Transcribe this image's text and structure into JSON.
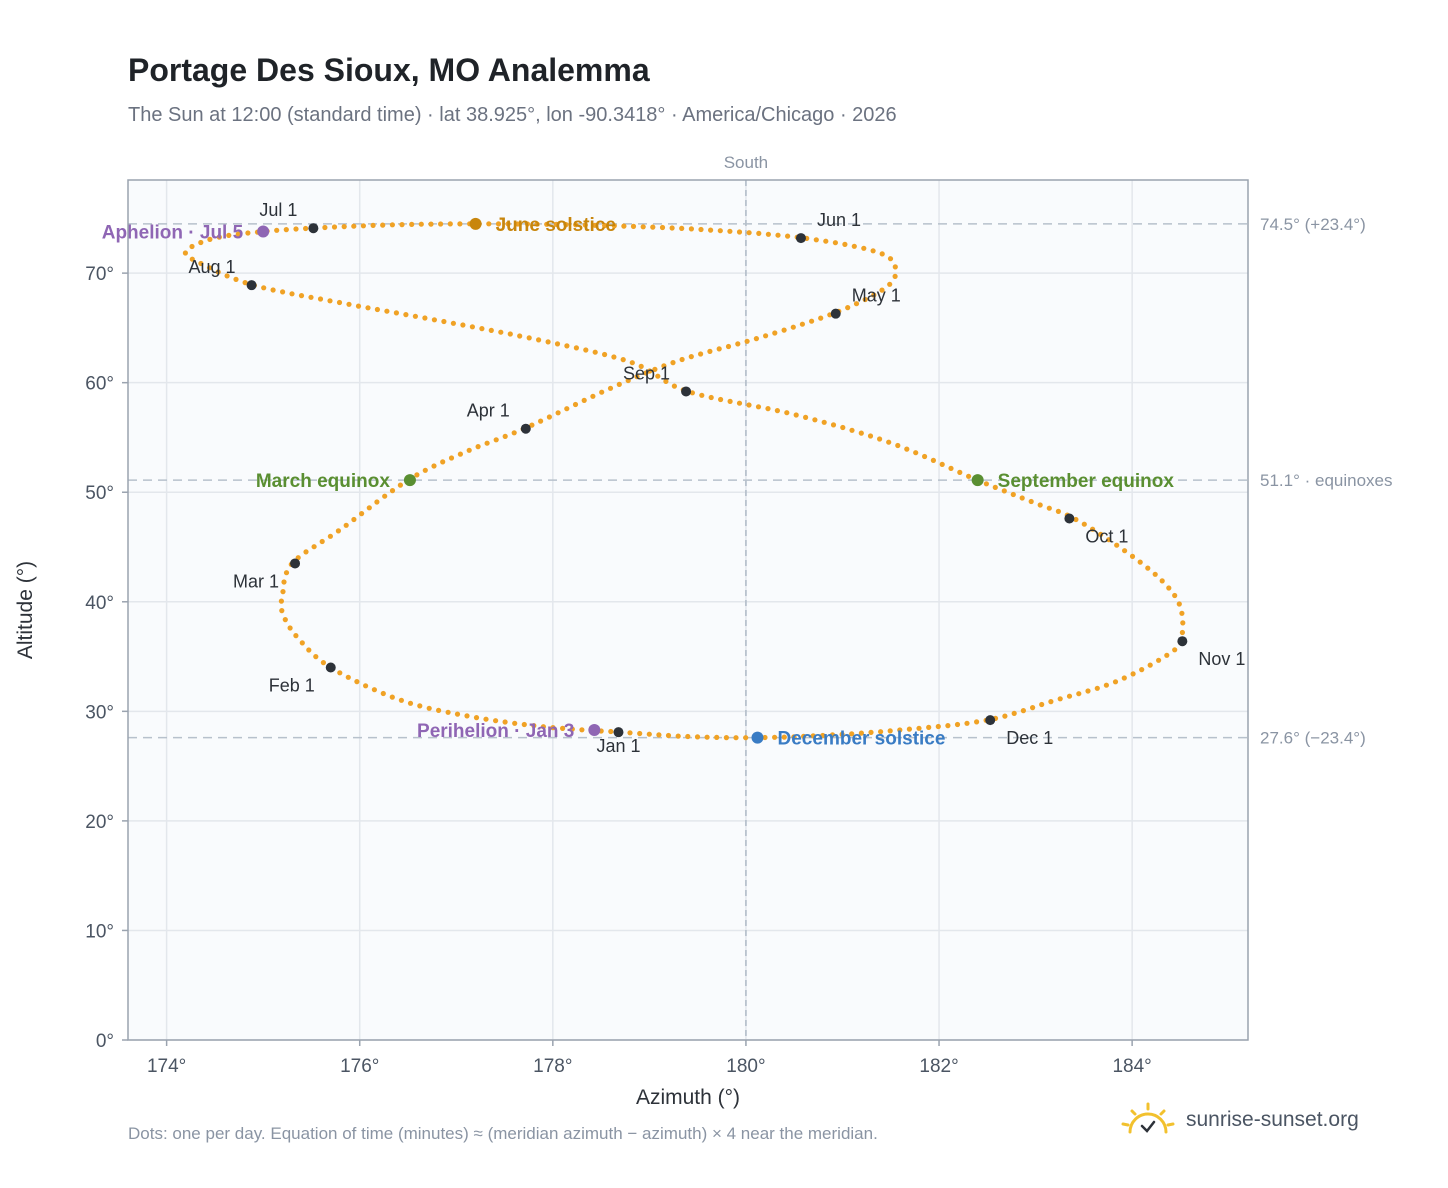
{
  "title": "Portage Des Sioux, MO Analemma",
  "subtitle": "The Sun at 12:00 (standard time) · lat 38.925°, lon -90.3418° · America/Chicago · 2026",
  "footnote": "Dots: one per day. Equation of time (minutes) ≈ (meridian azimuth − azimuth) × 4 near the meridian.",
  "brand": "sunrise-sunset.org",
  "colors": {
    "curve": "#f0a225",
    "month_marker": "#2d3239",
    "equinox": "#5a8f32",
    "june_solstice": "#c8860d",
    "december_solstice": "#3a7cc4",
    "apsis": "#8f66b4",
    "brand_sun": "#f2c12e"
  },
  "chart_data": {
    "type": "scatter",
    "xlabel": "Azimuth (°)",
    "ylabel": "Altitude (°)",
    "xlim": [
      173.6,
      185.2
    ],
    "ylim": [
      0,
      78.5
    ],
    "xticks": [
      174,
      176,
      178,
      180,
      182,
      184
    ],
    "xtick_labels": [
      "174°",
      "176°",
      "178°",
      "180°",
      "182°",
      "184°"
    ],
    "yticks": [
      0,
      10,
      20,
      30,
      40,
      50,
      60,
      70
    ],
    "ytick_labels": [
      "0°",
      "10°",
      "20°",
      "30°",
      "40°",
      "50°",
      "60°",
      "70°"
    ],
    "grid": true,
    "meridian": {
      "azimuth": 180,
      "label": "South"
    },
    "reference_lines": [
      {
        "altitude": 74.5,
        "label": "74.5° (+23.4°)"
      },
      {
        "altitude": 51.1,
        "label": "51.1° · equinoxes"
      },
      {
        "altitude": 27.6,
        "label": "27.6° (−23.4°)"
      }
    ],
    "path_keypoints": [
      [
        178.7,
        28.1
      ],
      [
        177.9,
        28.6
      ],
      [
        177.1,
        29.6
      ],
      [
        176.4,
        31.1
      ],
      [
        175.7,
        34.0
      ],
      [
        175.35,
        36.8
      ],
      [
        175.2,
        39.0
      ],
      [
        175.2,
        40.6
      ],
      [
        175.3,
        43.5
      ],
      [
        175.8,
        46.6
      ],
      [
        176.5,
        51.1
      ],
      [
        177.1,
        53.7
      ],
      [
        177.7,
        55.8
      ],
      [
        178.6,
        59.5
      ],
      [
        179.3,
        62.0
      ],
      [
        180.1,
        64.0
      ],
      [
        180.9,
        66.3
      ],
      [
        181.4,
        68.4
      ],
      [
        181.55,
        70.0
      ],
      [
        181.4,
        71.8
      ],
      [
        180.6,
        73.2
      ],
      [
        179.5,
        74.0
      ],
      [
        178.3,
        74.4
      ],
      [
        177.2,
        74.5
      ],
      [
        176.3,
        74.4
      ],
      [
        175.5,
        74.1
      ],
      [
        175.0,
        73.8
      ],
      [
        174.5,
        73.2
      ],
      [
        174.2,
        72.0
      ],
      [
        174.35,
        70.9
      ],
      [
        174.9,
        68.9
      ],
      [
        175.8,
        67.3
      ],
      [
        176.8,
        65.7
      ],
      [
        177.8,
        64.0
      ],
      [
        178.8,
        61.9
      ],
      [
        179.4,
        59.2
      ],
      [
        180.5,
        57.1
      ],
      [
        181.5,
        54.5
      ],
      [
        182.4,
        51.1
      ],
      [
        183.0,
        49.0
      ],
      [
        183.4,
        47.6
      ],
      [
        183.9,
        44.8
      ],
      [
        184.3,
        42.0
      ],
      [
        184.5,
        39.5
      ],
      [
        184.5,
        36.4
      ],
      [
        184.3,
        34.8
      ],
      [
        183.8,
        32.6
      ],
      [
        183.2,
        31.0
      ],
      [
        182.5,
        29.2
      ],
      [
        181.6,
        28.3
      ],
      [
        180.8,
        27.8
      ],
      [
        180.1,
        27.6
      ],
      [
        179.4,
        27.7
      ],
      [
        178.7,
        28.1
      ]
    ],
    "month_markers": [
      {
        "label": "Jan 1",
        "az": 178.68,
        "alt": 28.1,
        "pos": "below"
      },
      {
        "label": "Feb 1",
        "az": 175.7,
        "alt": 34.0,
        "pos": "below-left"
      },
      {
        "label": "Mar 1",
        "az": 175.33,
        "alt": 43.5,
        "pos": "below-left"
      },
      {
        "label": "Apr 1",
        "az": 177.72,
        "alt": 55.8,
        "pos": "above-left"
      },
      {
        "label": "May 1",
        "az": 180.93,
        "alt": 66.3,
        "pos": "above-right"
      },
      {
        "label": "Jun 1",
        "az": 180.57,
        "alt": 73.2,
        "pos": "above-right"
      },
      {
        "label": "Jul 1",
        "az": 175.52,
        "alt": 74.1,
        "pos": "above-left"
      },
      {
        "label": "Aug 1",
        "az": 174.88,
        "alt": 68.9,
        "pos": "above-left"
      },
      {
        "label": "Sep 1",
        "az": 179.38,
        "alt": 59.2,
        "pos": "above-left"
      },
      {
        "label": "Oct 1",
        "az": 183.35,
        "alt": 47.6,
        "pos": "below-right"
      },
      {
        "label": "Nov 1",
        "az": 184.52,
        "alt": 36.4,
        "pos": "below-right"
      },
      {
        "label": "Dec 1",
        "az": 182.53,
        "alt": 29.2,
        "pos": "below-right"
      }
    ],
    "events": [
      {
        "label": "March equinox",
        "az": 176.52,
        "alt": 51.1,
        "color": "#5a8f32",
        "pos": "left"
      },
      {
        "label": "September equinox",
        "az": 182.4,
        "alt": 51.1,
        "color": "#5a8f32",
        "pos": "right"
      },
      {
        "label": "June solstice",
        "az": 177.2,
        "alt": 74.5,
        "color": "#c8860d",
        "pos": "right"
      },
      {
        "label": "December solstice",
        "az": 180.12,
        "alt": 27.6,
        "color": "#3a7cc4",
        "pos": "right"
      },
      {
        "label": "Aphelion · Jul 5",
        "az": 175.0,
        "alt": 73.8,
        "color": "#8f66b4",
        "pos": "left"
      },
      {
        "label": "Perihelion · Jan 3",
        "az": 178.43,
        "alt": 28.3,
        "color": "#8f66b4",
        "pos": "left"
      }
    ]
  }
}
